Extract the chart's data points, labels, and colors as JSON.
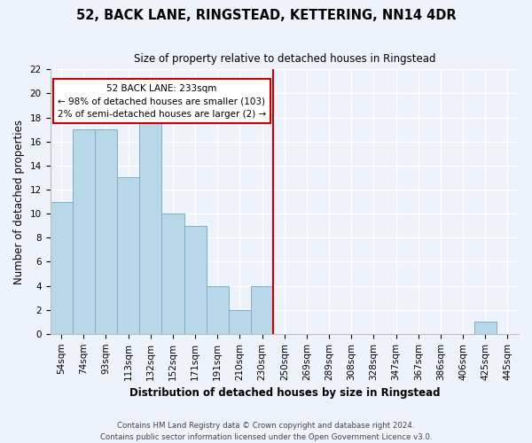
{
  "title": "52, BACK LANE, RINGSTEAD, KETTERING, NN14 4DR",
  "subtitle": "Size of property relative to detached houses in Ringstead",
  "xlabel": "Distribution of detached houses by size in Ringstead",
  "ylabel": "Number of detached properties",
  "bin_labels": [
    "54sqm",
    "74sqm",
    "93sqm",
    "113sqm",
    "132sqm",
    "152sqm",
    "171sqm",
    "191sqm",
    "210sqm",
    "230sqm",
    "250sqm",
    "269sqm",
    "289sqm",
    "308sqm",
    "328sqm",
    "347sqm",
    "367sqm",
    "386sqm",
    "406sqm",
    "425sqm",
    "445sqm"
  ],
  "bar_heights": [
    11,
    17,
    17,
    13,
    18,
    10,
    9,
    4,
    2,
    4,
    0,
    0,
    0,
    0,
    0,
    0,
    0,
    0,
    0,
    1,
    0
  ],
  "bar_color": "#b8d8ea",
  "bar_edge_color": "#7ab0cc",
  "vline_color": "#cc0000",
  "annotation_line1": "52 BACK LANE: 233sqm",
  "annotation_line2": "← 98% of detached houses are smaller (103)",
  "annotation_line3": "2% of semi-detached houses are larger (2) →",
  "ylim": [
    0,
    22
  ],
  "yticks": [
    0,
    2,
    4,
    6,
    8,
    10,
    12,
    14,
    16,
    18,
    20,
    22
  ],
  "footer": "Contains HM Land Registry data © Crown copyright and database right 2024.\nContains public sector information licensed under the Open Government Licence v3.0.",
  "title_fontsize": 10.5,
  "subtitle_fontsize": 8.5,
  "xlabel_fontsize": 8.5,
  "ylabel_fontsize": 8.5,
  "tick_fontsize": 7.5,
  "background_color": "#eef2fa"
}
